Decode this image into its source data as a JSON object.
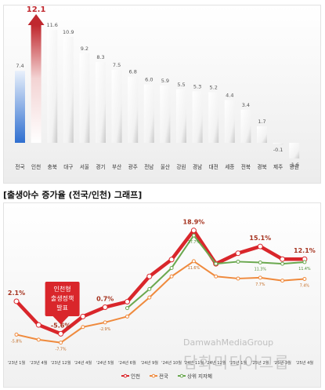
{
  "top_caption": "",
  "chart_data": [
    {
      "type": "bar",
      "categories": [
        "전국",
        "인천",
        "충북",
        "대구",
        "서울",
        "경기",
        "부산",
        "광주",
        "전남",
        "울산",
        "강원",
        "경남",
        "대전",
        "세종",
        "전북",
        "경북",
        "제주",
        "광원"
      ],
      "values": [
        7.4,
        12.1,
        11.6,
        10.9,
        9.2,
        8.3,
        7.5,
        6.8,
        6.0,
        5.9,
        5.5,
        5.3,
        5.2,
        4.4,
        3.4,
        1.7,
        -0.1,
        -1.6
      ],
      "ylim": [
        -2,
        13
      ],
      "highlight": {
        "전국": "#3f7dd8",
        "인천": "#c0282e"
      },
      "grid": false,
      "legend": "none"
    },
    {
      "type": "line",
      "title": "[출생아수 증가율 (전국/인천) 그래프]",
      "categories": [
        "'23년 1월",
        "'23년 4월",
        "'23년 12월",
        "'24년 4월",
        "'24년 5월",
        "'24년 6월",
        "'24년 9월",
        "'24년 10월",
        "'24년 11월",
        "'24년 12월",
        "'25년 1월",
        "'25년 2월",
        "'25년 3월",
        "'25년 4월"
      ],
      "series": [
        {
          "name": "인천",
          "color": "#d9262b",
          "values": [
            2.1,
            -3.5,
            -5.6,
            -1.5,
            0.7,
            2.0,
            8.0,
            12.0,
            18.9,
            11.0,
            13.5,
            15.1,
            12.1,
            12.1
          ],
          "labels": {
            "0": "2.1%",
            "2": "-5.6%",
            "4": "0.7%",
            "8": "18.9%",
            "11": "15.1%",
            "13": "12.1%"
          }
        },
        {
          "name": "전국",
          "color": "#ef8a3d",
          "values": [
            -5.8,
            -7.0,
            -7.7,
            -4.0,
            -2.9,
            -1.5,
            3.0,
            8.0,
            11.6,
            8.0,
            7.5,
            7.7,
            7.0,
            7.4
          ],
          "labels": {
            "0": "-5.8%",
            "2": "-7.7%",
            "4": "-2.9%",
            "8": "11.6%",
            "11": "7.7%",
            "13": "7.4%"
          }
        },
        {
          "name": "상위 지자체",
          "color": "#6aa84f",
          "values": [
            null,
            null,
            null,
            null,
            null,
            0.5,
            5.0,
            10.0,
            17.7,
            11.0,
            11.5,
            11.3,
            11.0,
            11.4
          ],
          "labels": {
            "8": "17.7%",
            "11": "11.3%",
            "13": "11.4%"
          }
        }
      ],
      "annotation": {
        "text": [
          "인천형",
          "출생정책",
          "발표"
        ],
        "color": "#d9262b",
        "text_color": "#ffffff"
      },
      "ylim": [
        -10,
        22
      ],
      "legend": "bottom"
    }
  ],
  "watermark": {
    "line1": "DamwahMediaGroup",
    "line2": "담화미디어그룹"
  }
}
